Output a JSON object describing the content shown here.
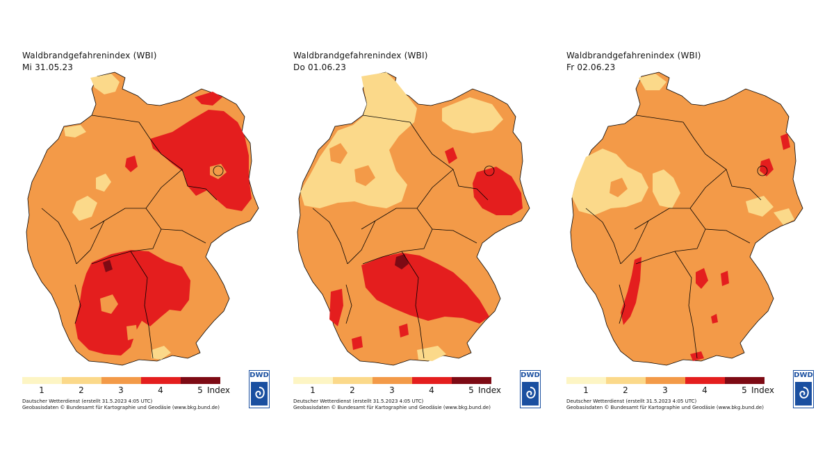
{
  "panels": [
    {
      "title": "Waldbrandgefahrenindex (WBI)",
      "date": "Mi 31.05.23",
      "date_credit": "Dautscher Wetterdienst (erstellt 31.5.2023 4:05 UTC)"
    },
    {
      "title": "Waldbrandgefahrenindex (WBI)",
      "date": "Do 01.06.23",
      "date_credit": "Deutscher Wetterdienst (erstellt 31.5.2023 4:05 UTC)"
    },
    {
      "title": "Waldbrandgefahrenindex (WBI)",
      "date": "Fr 02.06.23",
      "date_credit": "Deutscher Wetterdienst (erstellt 31.5.2023 4:05 UTC)"
    }
  ],
  "geo_credit": "Geobasisdaten © Bundesamt für Kartographie und Geodäsie (www.bkg.bund.de)",
  "legend": {
    "ticks": [
      "1",
      "2",
      "3",
      "4",
      "5"
    ],
    "unit": "Index",
    "colors": [
      "#fdf5c4",
      "#fbd98a",
      "#f39a48",
      "#e41e1e",
      "#7d0a14"
    ]
  },
  "logo": {
    "text": "DWD",
    "icon": "dwd-swirl-icon",
    "color": "#1a4fa0"
  }
}
